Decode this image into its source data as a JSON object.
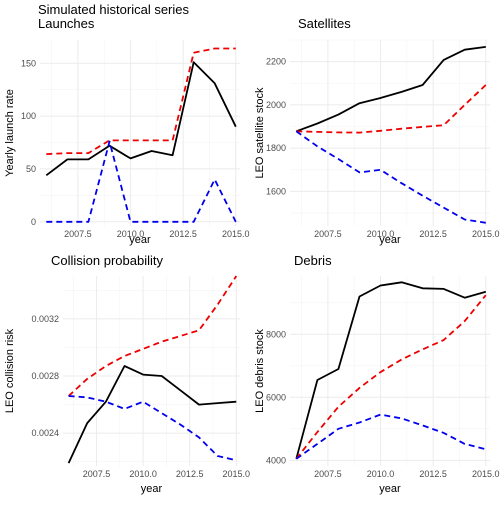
{
  "figure": {
    "title": "Simulated historical series"
  },
  "colors": {
    "baseline": "#000000",
    "upper": "#ee0000",
    "lower": "#0000ee",
    "grid": "#ebebeb"
  },
  "chart_data": [
    {
      "type": "line",
      "title": "Launches",
      "xlabel": "year",
      "ylabel": "Yearly launch rate",
      "xlim": [
        2005.7,
        2015.2
      ],
      "ylim": [
        -4,
        172
      ],
      "xticks": [
        2007.5,
        2010.0,
        2012.5,
        2015.0
      ],
      "xtick_labels": [
        "2007.5",
        "2010.0",
        "2012.5",
        "2015.0"
      ],
      "yticks": [
        0,
        50,
        100,
        150
      ],
      "ytick_labels": [
        "0",
        "50",
        "100",
        "150"
      ],
      "x": [
        2006,
        2007,
        2008,
        2009,
        2010,
        2011,
        2012,
        2013,
        2014,
        2015
      ],
      "series": [
        {
          "style": "solid",
          "color": "#000000",
          "values": [
            44,
            59,
            59,
            72,
            60,
            67,
            63,
            151,
            131,
            90
          ]
        },
        {
          "style": "dashed",
          "color": "#ee0000",
          "values": [
            64,
            65,
            65,
            77,
            77,
            77,
            77,
            160,
            164,
            164
          ]
        },
        {
          "style": "dashed",
          "color": "#0000ee",
          "values": [
            0,
            0,
            0,
            76,
            0,
            0,
            0,
            0,
            40,
            0
          ]
        }
      ]
    },
    {
      "type": "line",
      "title": "Satellites",
      "xlabel": "year",
      "ylabel": "LEO satellite stock",
      "xlim": [
        2005.7,
        2015.2
      ],
      "ylim": [
        1440,
        2300
      ],
      "xticks": [
        2007.5,
        2010.0,
        2012.5,
        2015.0
      ],
      "xtick_labels": [
        "2007.5",
        "2010.0",
        "2012.5",
        "2015.0"
      ],
      "yticks": [
        1600,
        1800,
        2000,
        2200
      ],
      "ytick_labels": [
        "1600",
        "1800",
        "2000",
        "2200"
      ],
      "x": [
        2006,
        2007,
        2008,
        2009,
        2010,
        2011,
        2012,
        2013,
        2014,
        2015
      ],
      "series": [
        {
          "style": "solid",
          "color": "#000000",
          "values": [
            1878,
            1914,
            1955,
            2008,
            2032,
            2060,
            2092,
            2208,
            2255,
            2268
          ]
        },
        {
          "style": "dashed",
          "color": "#ee0000",
          "values": [
            1878,
            1875,
            1873,
            1872,
            1880,
            1890,
            1898,
            1906,
            2000,
            2092
          ]
        },
        {
          "style": "dashed",
          "color": "#0000ee",
          "values": [
            1878,
            1808,
            1750,
            1688,
            1700,
            1638,
            1580,
            1525,
            1470,
            1455
          ]
        }
      ]
    },
    {
      "type": "line",
      "title": "Collision probability",
      "xlabel": "year",
      "ylabel": "LEO collision risk",
      "xlim": [
        2005.7,
        2015.2
      ],
      "ylim": [
        0.00217,
        0.0035
      ],
      "xticks": [
        2007.5,
        2010.0,
        2012.5,
        2015.0
      ],
      "xtick_labels": [
        "2007.5",
        "2010.0",
        "2012.5",
        "2015.0"
      ],
      "yticks": [
        0.0024,
        0.0028,
        0.0032
      ],
      "ytick_labels": [
        "0.0024",
        "0.0028",
        "0.0032"
      ],
      "x": [
        2006,
        2007,
        2008,
        2009,
        2010,
        2011,
        2012,
        2013,
        2014,
        2015
      ],
      "series": [
        {
          "style": "solid",
          "color": "#000000",
          "values": [
            0.00219,
            0.00247,
            0.00262,
            0.00287,
            0.00281,
            0.0028,
            0.0027,
            0.0026,
            0.00261,
            0.00262
          ]
        },
        {
          "style": "dashed",
          "color": "#ee0000",
          "values": [
            0.00266,
            0.00278,
            0.00287,
            0.00294,
            0.00299,
            0.00304,
            0.00308,
            0.00312,
            0.0033,
            0.0035
          ]
        },
        {
          "style": "dashed",
          "color": "#0000ee",
          "values": [
            0.00266,
            0.00265,
            0.00262,
            0.00257,
            0.00262,
            0.00254,
            0.00246,
            0.00237,
            0.00224,
            0.00221
          ]
        }
      ]
    },
    {
      "type": "line",
      "title": "Debris",
      "xlabel": "year",
      "ylabel": "LEO debris stock",
      "xlim": [
        2005.7,
        2015.2
      ],
      "ylim": [
        3820,
        9850
      ],
      "xticks": [
        2007.5,
        2010.0,
        2012.5,
        2015.0
      ],
      "xtick_labels": [
        "2007.5",
        "2010.0",
        "2012.5",
        "2015.0"
      ],
      "yticks": [
        4000,
        6000,
        8000
      ],
      "ytick_labels": [
        "4000",
        "6000",
        "8000"
      ],
      "x": [
        2006,
        2007,
        2008,
        2009,
        2010,
        2011,
        2012,
        2013,
        2014,
        2015
      ],
      "series": [
        {
          "style": "solid",
          "color": "#000000",
          "values": [
            4050,
            6550,
            6900,
            9200,
            9550,
            9650,
            9460,
            9440,
            9160,
            9350
          ]
        },
        {
          "style": "dashed",
          "color": "#ee0000",
          "values": [
            4050,
            4900,
            5700,
            6300,
            6800,
            7200,
            7520,
            7820,
            8420,
            9240
          ]
        },
        {
          "style": "dashed",
          "color": "#0000ee",
          "values": [
            4050,
            4520,
            5000,
            5200,
            5450,
            5330,
            5110,
            4870,
            4520,
            4350
          ]
        }
      ]
    }
  ]
}
